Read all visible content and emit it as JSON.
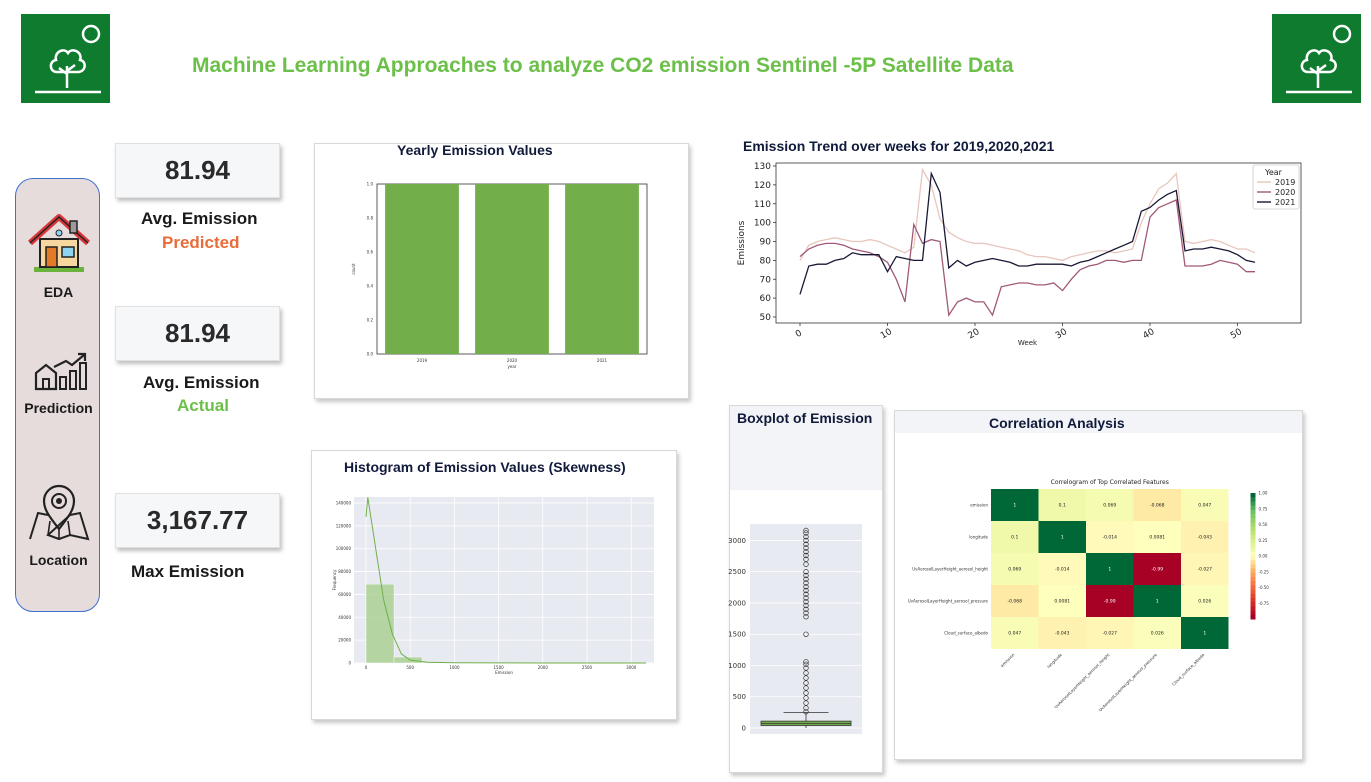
{
  "header": {
    "title": "Machine Learning Approaches to analyze CO2  emission Sentinel -5P Satellite Data"
  },
  "logos": {
    "icon": "tree-icon",
    "color": "#0e7b2e"
  },
  "sidebar": {
    "items": [
      {
        "label": "EDA",
        "icon": "house-icon"
      },
      {
        "label": "Prediction",
        "icon": "growth-chart-icon"
      },
      {
        "label": "Location",
        "icon": "map-pin-icon"
      }
    ]
  },
  "kpis": {
    "predicted": {
      "value": "81.94",
      "label": "Avg. Emission",
      "sub": "Predicted",
      "sub_color": "#e86d3a"
    },
    "actual": {
      "value": "81.94",
      "label": "Avg. Emission",
      "sub": "Actual",
      "sub_color": "#6cc04a"
    },
    "max": {
      "value": "3,167.77",
      "label": "Max Emission"
    }
  },
  "cards": {
    "yearly": {
      "title": "Yearly Emission Values"
    },
    "trend": {
      "title": "Emission Trend over weeks for 2019,2020,2021"
    },
    "histogram": {
      "title": "Histogram of Emission Values (Skewness)"
    },
    "boxplot": {
      "title": "Boxplot of Emission"
    },
    "correlation": {
      "title": "Correlation Analysis"
    }
  },
  "chart_data": [
    {
      "id": "yearly",
      "type": "bar",
      "categories": [
        "2019",
        "2020",
        "2021"
      ],
      "values": [
        1.0,
        1.0,
        1.0
      ],
      "xlabel": "year",
      "ylabel": "count",
      "ylim": [
        0,
        1.0
      ],
      "yticks": [
        "0.0",
        "0.2",
        "0.4",
        "0.6",
        "0.8",
        "1.0"
      ],
      "color": "#72af4b"
    },
    {
      "id": "trend",
      "type": "line",
      "xlabel": "Week",
      "ylabel": "Emissions",
      "xlim": [
        0,
        52
      ],
      "ylim": [
        50,
        130
      ],
      "xticks": [
        "0",
        "10",
        "20",
        "30",
        "40",
        "50"
      ],
      "yticks": [
        "50",
        "60",
        "70",
        "80",
        "90",
        "100",
        "110",
        "120",
        "130"
      ],
      "legend": {
        "title": "Year",
        "placement": "top-right"
      },
      "series": [
        {
          "name": "2019",
          "color": "#e8c6bd",
          "values": [
            80,
            88,
            90,
            91,
            92,
            91,
            90,
            90,
            91,
            90,
            88,
            86,
            84,
            87,
            128,
            120,
            102,
            95,
            92,
            90,
            89,
            89,
            88,
            87,
            86,
            85,
            83,
            82,
            82,
            81,
            80,
            82,
            83,
            84,
            85,
            85,
            84,
            85,
            86,
            100,
            110,
            118,
            121,
            126,
            90,
            89,
            90,
            91,
            90,
            88,
            86,
            86,
            84
          ]
        },
        {
          "name": "2020",
          "color": "#a05a78",
          "values": [
            82,
            86,
            88,
            89,
            89,
            88,
            86,
            85,
            84,
            82,
            79,
            70,
            58,
            99,
            89,
            91,
            90,
            51,
            58,
            60,
            58,
            58,
            51,
            66,
            67,
            68,
            68,
            67,
            67,
            68,
            64,
            70,
            75,
            77,
            78,
            80,
            80,
            79,
            80,
            80,
            103,
            108,
            110,
            112,
            77,
            77,
            77,
            78,
            80,
            79,
            78,
            74,
            74
          ]
        },
        {
          "name": "2021",
          "color": "#181836",
          "values": [
            62,
            77,
            78,
            78,
            80,
            81,
            84,
            83,
            83,
            83,
            74,
            82,
            81,
            80,
            80,
            126,
            116,
            76,
            80,
            77,
            79,
            80,
            81,
            80,
            79,
            77,
            77,
            78,
            78,
            78,
            78,
            77,
            79,
            80,
            82,
            84,
            86,
            88,
            90,
            106,
            108,
            112,
            115,
            117,
            85,
            86,
            86,
            87,
            86,
            85,
            83,
            80,
            79
          ]
        }
      ]
    },
    {
      "id": "histogram",
      "type": "bar",
      "xlabel": "Emission",
      "ylabel": "Frequency",
      "xlim": [
        0,
        3167
      ],
      "ylim": [
        0,
        140000
      ],
      "xticks": [
        "0",
        "500",
        "1000",
        "1500",
        "2000",
        "2500",
        "3000"
      ],
      "yticks": [
        "0",
        "20000",
        "40000",
        "60000",
        "80000",
        "100000",
        "120000",
        "140000"
      ],
      "bins": [
        [
          0,
          317,
          69000
        ],
        [
          317,
          634,
          5200
        ],
        [
          634,
          950,
          600
        ],
        [
          950,
          1267,
          200
        ],
        [
          1267,
          1584,
          80
        ],
        [
          1584,
          1900,
          40
        ],
        [
          1900,
          2217,
          20
        ],
        [
          2217,
          2534,
          10
        ],
        [
          2534,
          2850,
          5
        ],
        [
          2850,
          3167,
          3
        ]
      ],
      "kde": [
        [
          0,
          128000
        ],
        [
          20,
          145000
        ],
        [
          60,
          125000
        ],
        [
          120,
          95000
        ],
        [
          200,
          55000
        ],
        [
          300,
          25000
        ],
        [
          400,
          8000
        ],
        [
          500,
          2500
        ],
        [
          700,
          600
        ],
        [
          1000,
          200
        ],
        [
          1500,
          60
        ],
        [
          2000,
          20
        ],
        [
          3167,
          0
        ]
      ],
      "color": "#a6d08e"
    },
    {
      "id": "boxplot",
      "type": "box",
      "ylim": [
        0,
        3167
      ],
      "yticks": [
        "0",
        "500",
        "1000",
        "1500",
        "2000",
        "2500",
        "3000"
      ],
      "q1": 40,
      "median": 70,
      "q3": 110,
      "whisker_low": 0,
      "whisker_high": 250,
      "outliers": [
        260,
        320,
        400,
        480,
        560,
        640,
        720,
        800,
        880,
        960,
        1020,
        1060,
        1500,
        1780,
        1840,
        1900,
        1960,
        2020,
        2080,
        2140,
        2200,
        2260,
        2320,
        2380,
        2440,
        2500,
        2620,
        2700,
        2760,
        2820,
        2880,
        2940,
        3000,
        3060,
        3120,
        3160
      ],
      "color": "#72af4b"
    },
    {
      "id": "correlation",
      "type": "heatmap",
      "title": "Correlogram of Top Correlated Features",
      "labels": [
        "emission",
        "longitude",
        "UvAerosolLayerHeight_aerosol_height",
        "UvAerosolLayerHeight_aerosol_pressure",
        "Cloud_surface_albedo"
      ],
      "matrix": [
        [
          1,
          0.1,
          0.069,
          -0.068,
          0.047
        ],
        [
          0.1,
          1,
          -0.014,
          0.0081,
          -0.043
        ],
        [
          0.069,
          -0.014,
          1,
          -0.99,
          -0.027
        ],
        [
          -0.068,
          0.0081,
          -0.99,
          1,
          0.026
        ],
        [
          0.047,
          -0.043,
          -0.027,
          0.026,
          1
        ]
      ],
      "cell_labels": [
        [
          "1",
          "0.1",
          "0.069",
          "-0.068",
          "0.047"
        ],
        [
          "0.1",
          "1",
          "-0.014",
          "0.0081",
          "-0.043"
        ],
        [
          "0.069",
          "-0.014",
          "1",
          "-0.99",
          "-0.027"
        ],
        [
          "-0.068",
          "0.0081",
          "-0.99",
          "1",
          "0.026"
        ],
        [
          "0.047",
          "-0.043",
          "-0.027",
          "0.026",
          "1"
        ]
      ],
      "colorbar_ticks": [
        "1.00",
        "0.75",
        "0.50",
        "0.25",
        "0.00",
        "-0.25",
        "-0.50",
        "-0.75"
      ],
      "colormap": "RdYlGn"
    }
  ]
}
